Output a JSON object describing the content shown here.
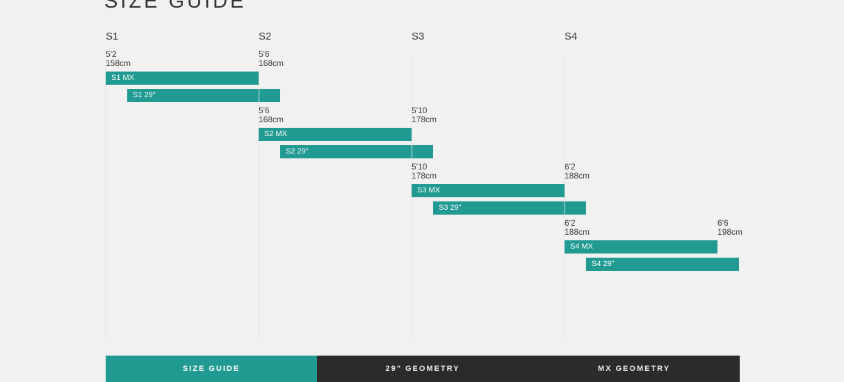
{
  "title": "SIZE GUIDE",
  "colors": {
    "accent": "#219a92",
    "tab_dark": "#2b2b2b",
    "background": "#f1f1f1",
    "gridline": "#e1e1e1",
    "heading_text": "#333333",
    "label_text": "#3d3d3d",
    "bar_text": "#ffffff",
    "tab_text_inactive": "#ececec"
  },
  "chart_data": {
    "type": "bar",
    "orientation": "horizontal",
    "title": "SIZE GUIDE",
    "categories": [
      "S1",
      "S2",
      "S3",
      "S4"
    ],
    "series": [
      {
        "name": "MX",
        "labels": [
          "S1 MX",
          "S2 MX",
          "S3 MX",
          "S4 MX"
        ]
      },
      {
        "name": "29\"",
        "labels": [
          "S1 29\"",
          "S2 29\"",
          "S3 29\"",
          "S4 29\""
        ]
      }
    ],
    "x_axis": {
      "unit": "rider height",
      "tick_labels_imperial": [
        "5'2",
        "5'6",
        "5'10",
        "6'2",
        "6'6"
      ],
      "tick_labels_metric": [
        "158cm",
        "168cm",
        "178cm",
        "188cm",
        "198cm"
      ]
    },
    "grid": "vertical lines at size boundaries",
    "legend": "none",
    "sizes": [
      {
        "name": "S1",
        "min_imperial": "5'2",
        "min_metric": "158cm",
        "max_imperial": "5'6",
        "max_metric": "168cm",
        "bars": [
          {
            "series": "MX",
            "label": "S1 MX"
          },
          {
            "series": "29\"",
            "label": "S1 29\""
          }
        ]
      },
      {
        "name": "S2",
        "min_imperial": "5'6",
        "min_metric": "168cm",
        "max_imperial": "5'10",
        "max_metric": "178cm",
        "bars": [
          {
            "series": "MX",
            "label": "S2 MX"
          },
          {
            "series": "29\"",
            "label": "S2 29\""
          }
        ]
      },
      {
        "name": "S3",
        "min_imperial": "5'10",
        "min_metric": "178cm",
        "max_imperial": "6'2",
        "max_metric": "188cm",
        "bars": [
          {
            "series": "MX",
            "label": "S3 MX"
          },
          {
            "series": "29\"",
            "label": "S3 29\""
          }
        ]
      },
      {
        "name": "S4",
        "min_imperial": "6'2",
        "min_metric": "188cm",
        "max_imperial": "6'6",
        "max_metric": "198cm",
        "bars": [
          {
            "series": "MX",
            "label": "S4 MX"
          },
          {
            "series": "29\"",
            "label": "S4 29\""
          }
        ]
      }
    ]
  },
  "tabs": [
    {
      "label": "SIZE GUIDE",
      "active": true
    },
    {
      "label": "29\" GEOMETRY",
      "active": false
    },
    {
      "label": "MX GEOMETRY",
      "active": false
    }
  ]
}
